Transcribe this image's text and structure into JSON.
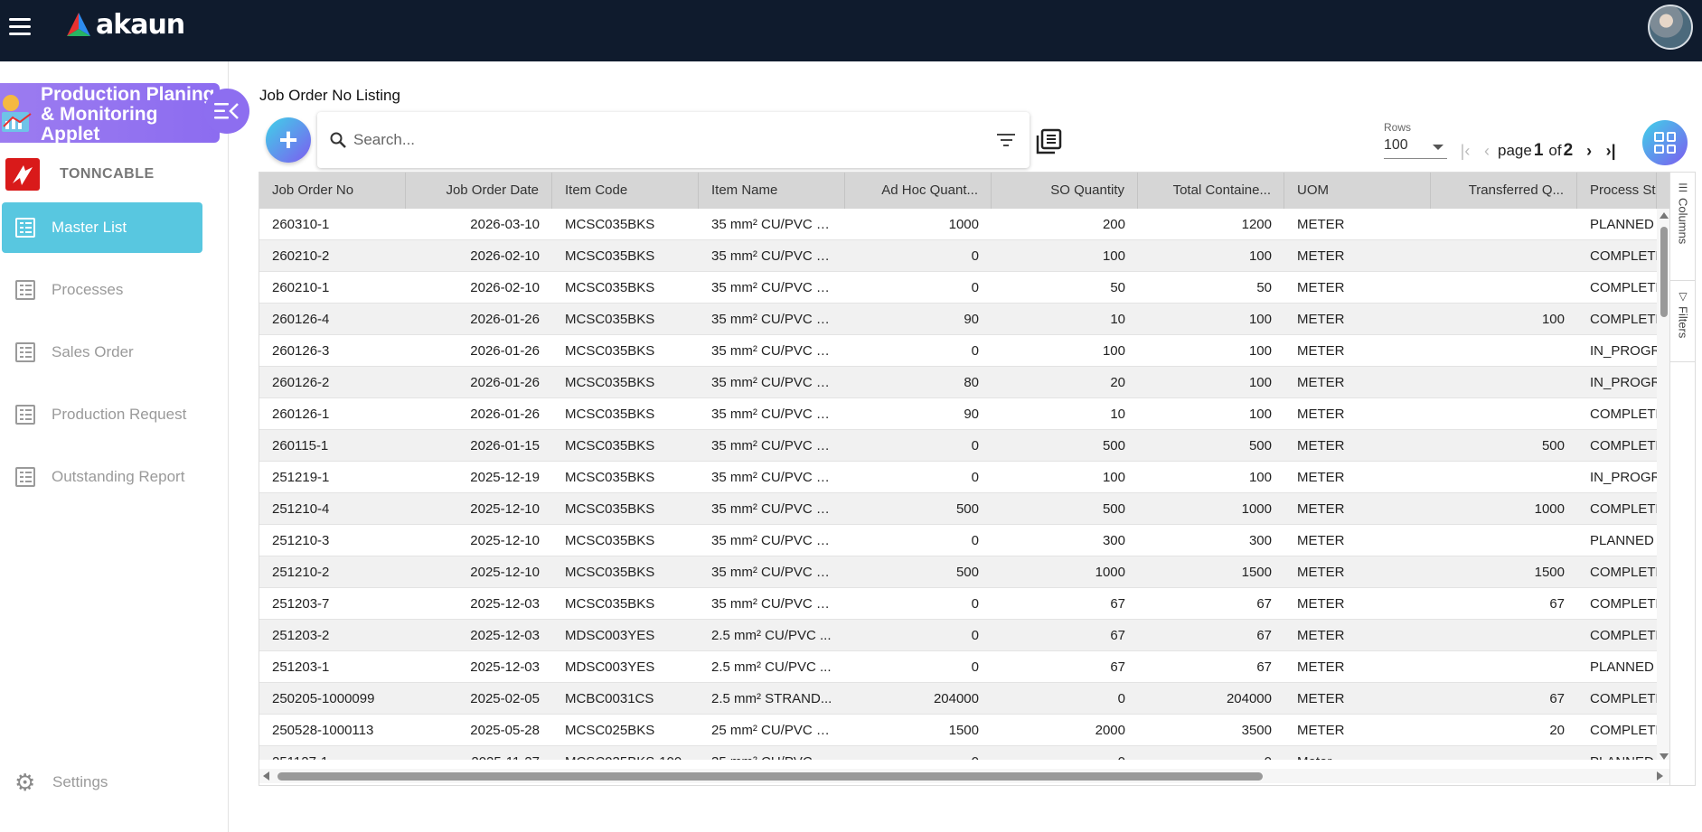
{
  "app": {
    "brand": "akaun"
  },
  "sidebar": {
    "applet_title": "Production Planing & Monitoring Applet",
    "company": "TONNCABLE",
    "items": [
      {
        "label": "Master List",
        "active": true
      },
      {
        "label": "Processes",
        "active": false
      },
      {
        "label": "Sales Order",
        "active": false
      },
      {
        "label": "Production Request",
        "active": false
      },
      {
        "label": "Outstanding Report",
        "active": false
      }
    ],
    "settings_label": "Settings"
  },
  "main": {
    "title": "Job Order No Listing",
    "search": {
      "placeholder": "Search...",
      "value": ""
    },
    "rows_label": "Rows",
    "rows_value": "100",
    "pagination": {
      "page_word": "page",
      "current": "1",
      "of_word": "of",
      "total": "2"
    }
  },
  "table": {
    "columns": [
      "Job Order No",
      "Job Order Date",
      "Item Code",
      "Item Name",
      "Ad Hoc Quant...",
      "SO Quantity",
      "Total Containe...",
      "UOM",
      "Transferred Q...",
      "Process Stat"
    ],
    "side_tabs": [
      "Columns",
      "Filters"
    ],
    "rows": [
      [
        "260310-1",
        "2026-03-10",
        "MCSC035BKS",
        "35 mm² CU/PVC B...",
        "1000",
        "200",
        "1200",
        "METER",
        "",
        "PLANNED"
      ],
      [
        "260210-2",
        "2026-02-10",
        "MCSC035BKS",
        "35 mm² CU/PVC B...",
        "0",
        "100",
        "100",
        "METER",
        "",
        "COMPLETED"
      ],
      [
        "260210-1",
        "2026-02-10",
        "MCSC035BKS",
        "35 mm² CU/PVC B...",
        "0",
        "50",
        "50",
        "METER",
        "",
        "COMPLETED"
      ],
      [
        "260126-4",
        "2026-01-26",
        "MCSC035BKS",
        "35 mm² CU/PVC B...",
        "90",
        "10",
        "100",
        "METER",
        "100",
        "COMPLETED"
      ],
      [
        "260126-3",
        "2026-01-26",
        "MCSC035BKS",
        "35 mm² CU/PVC B...",
        "0",
        "100",
        "100",
        "METER",
        "",
        "IN_PROGRESS"
      ],
      [
        "260126-2",
        "2026-01-26",
        "MCSC035BKS",
        "35 mm² CU/PVC B...",
        "80",
        "20",
        "100",
        "METER",
        "",
        "IN_PROGRESS"
      ],
      [
        "260126-1",
        "2026-01-26",
        "MCSC035BKS",
        "35 mm² CU/PVC B...",
        "90",
        "10",
        "100",
        "METER",
        "",
        "COMPLETED"
      ],
      [
        "260115-1",
        "2026-01-15",
        "MCSC035BKS",
        "35 mm² CU/PVC B...",
        "0",
        "500",
        "500",
        "METER",
        "500",
        "COMPLETED"
      ],
      [
        "251219-1",
        "2025-12-19",
        "MCSC035BKS",
        "35 mm² CU/PVC B...",
        "0",
        "100",
        "100",
        "METER",
        "",
        "IN_PROGRESS"
      ],
      [
        "251210-4",
        "2025-12-10",
        "MCSC035BKS",
        "35 mm² CU/PVC B...",
        "500",
        "500",
        "1000",
        "METER",
        "1000",
        "COMPLETED"
      ],
      [
        "251210-3",
        "2025-12-10",
        "MCSC035BKS",
        "35 mm² CU/PVC B...",
        "0",
        "300",
        "300",
        "METER",
        "",
        "PLANNED"
      ],
      [
        "251210-2",
        "2025-12-10",
        "MCSC035BKS",
        "35 mm² CU/PVC B...",
        "500",
        "1000",
        "1500",
        "METER",
        "1500",
        "COMPLETED"
      ],
      [
        "251203-7",
        "2025-12-03",
        "MCSC035BKS",
        "35 mm² CU/PVC B...",
        "0",
        "67",
        "67",
        "METER",
        "67",
        "COMPLETED"
      ],
      [
        "251203-2",
        "2025-12-03",
        "MDSC003YES",
        "2.5 mm² CU/PVC ...",
        "0",
        "67",
        "67",
        "METER",
        "",
        "COMPLETED"
      ],
      [
        "251203-1",
        "2025-12-03",
        "MDSC003YES",
        "2.5 mm² CU/PVC ...",
        "0",
        "67",
        "67",
        "METER",
        "",
        "PLANNED"
      ],
      [
        "250205-1000099",
        "2025-02-05",
        "MCBC0031CS",
        "2.5 mm² STRAND...",
        "204000",
        "0",
        "204000",
        "METER",
        "67",
        "COMPLETED"
      ],
      [
        "250528-1000113",
        "2025-05-28",
        "MCSC025BKS",
        "25 mm² CU/PVC B...",
        "1500",
        "2000",
        "3500",
        "METER",
        "20",
        "COMPLETED"
      ],
      [
        "251127-1",
        "2025-11-27",
        "MCSC035BKS-100",
        "35 mm² CU/PVC B...",
        "0",
        "0",
        "0",
        "Meter",
        "",
        "PLANNED"
      ]
    ]
  },
  "colors": {
    "topbar": "#0f1b2d",
    "applet_banner": "#8c6cf0",
    "active_nav": "#58c7e0",
    "header_row": "#d6d6d6"
  }
}
